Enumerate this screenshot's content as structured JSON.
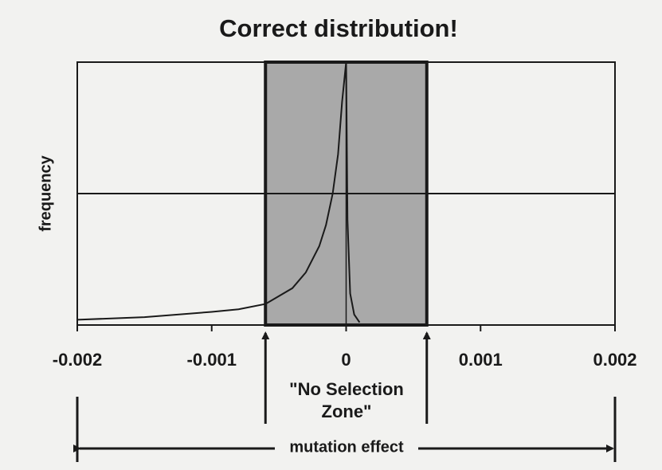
{
  "chart_data": {
    "type": "line",
    "title": "Correct distribution!",
    "y_label": "frequency",
    "x_label": "mutation effect",
    "annotation": [
      "\"No Selection",
      "Zone\""
    ],
    "x": [
      -0.002,
      -0.0015,
      -0.001,
      -0.0008,
      -0.0006,
      -0.0004,
      -0.0003,
      -0.0002,
      -0.00015,
      -0.0001,
      -6e-05,
      -3e-05,
      0,
      1e-05,
      3e-05,
      6e-05,
      0.0001
    ],
    "values": [
      0.02,
      0.03,
      0.05,
      0.06,
      0.08,
      0.14,
      0.2,
      0.3,
      0.38,
      0.5,
      0.65,
      0.85,
      1,
      0.4,
      0.12,
      0.04,
      0.01
    ],
    "color": "#1a1a1a",
    "zone": [
      -0.0006,
      0.0006
    ],
    "zone_color": "#a9a9a9",
    "hlines": [
      0.5
    ],
    "xlim": [
      -0.002,
      0.002
    ],
    "ylim": [
      0,
      1
    ],
    "xticks": [
      -0.002,
      -0.001,
      0,
      0.001,
      0.002
    ]
  }
}
